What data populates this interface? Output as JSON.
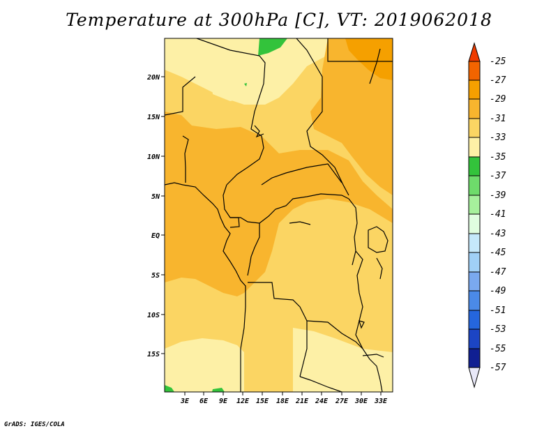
{
  "title": "Temperature at 300hPa [C], VT: 2019062018",
  "credit": "GrADS: IGES/COLA",
  "lat_labels": [
    "20N",
    "15N",
    "10N",
    "5N",
    "EQ",
    "5S",
    "10S",
    "15S"
  ],
  "lon_labels": [
    "3E",
    "6E",
    "9E",
    "12E",
    "15E",
    "18E",
    "21E",
    "24E",
    "27E",
    "30E",
    "33E"
  ],
  "colorbar": {
    "labels": [
      "-25",
      "-27",
      "-29",
      "-31",
      "-33",
      "-35",
      "-37",
      "-39",
      "-41",
      "-43",
      "-45",
      "-47",
      "-49",
      "-51",
      "-53",
      "-55",
      "-57"
    ],
    "colors": [
      "#f03c00",
      "#f26400",
      "#f5a000",
      "#f8b52e",
      "#fbd563",
      "#fdf0a6",
      "#33c33b",
      "#6edb6b",
      "#a6f09c",
      "#e0fde0",
      "#c5e8fb",
      "#a0d0f7",
      "#7aa9ef",
      "#4b8ae8",
      "#2566dd",
      "#1c45c4",
      "#101f92",
      "#0a0a6f",
      "#e8e8f8"
    ]
  },
  "palette": {
    "t31": "#f8b52e",
    "t33": "#fbd563",
    "t35": "#fdf0a6",
    "t29": "#f5a000",
    "green": "#33c33b"
  }
}
